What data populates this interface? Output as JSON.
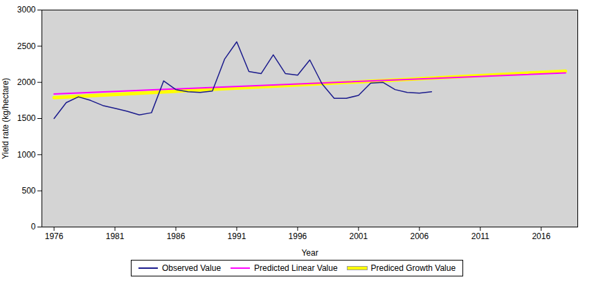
{
  "chart_data": {
    "type": "line",
    "xlabel": "Year",
    "ylabel": "Yield rate (kg/hectare)",
    "series": [
      {
        "name": "Observed Value",
        "color": "#1A1A8C",
        "x": [
          1976,
          1977,
          1978,
          1979,
          1980,
          1981,
          1982,
          1983,
          1984,
          1985,
          1986,
          1987,
          1988,
          1989,
          1990,
          1991,
          1992,
          1993,
          1994,
          1995,
          1996,
          1997,
          1998,
          1999,
          2000,
          2001,
          2002,
          2003,
          2004,
          2005,
          2006,
          2007
        ],
        "values": [
          1500,
          1720,
          1800,
          1750,
          1680,
          1640,
          1600,
          1550,
          1580,
          2020,
          1900,
          1870,
          1860,
          1880,
          2320,
          2560,
          2150,
          2120,
          2380,
          2120,
          2100,
          2310,
          1980,
          1780,
          1780,
          1820,
          1990,
          2000,
          1900,
          1860,
          1850,
          1870
        ]
      },
      {
        "name": "Predicted Linear Value",
        "color": "#FF00FF",
        "x": [
          1976,
          2018
        ],
        "values": [
          1840,
          2130
        ]
      },
      {
        "name": "Prediced Growth Value",
        "color": "#FFFF00",
        "x": [
          1976,
          2018
        ],
        "values": [
          1790,
          2155
        ]
      }
    ],
    "xlim": [
      1975,
      2019
    ],
    "xticks": [
      1976,
      1981,
      1986,
      1991,
      1996,
      2001,
      2006,
      2011,
      2016
    ],
    "ylim": [
      0,
      3000
    ],
    "yticks": [
      0,
      500,
      1000,
      1500,
      2000,
      2500,
      3000
    ],
    "grid": false,
    "legend": "bottom"
  }
}
